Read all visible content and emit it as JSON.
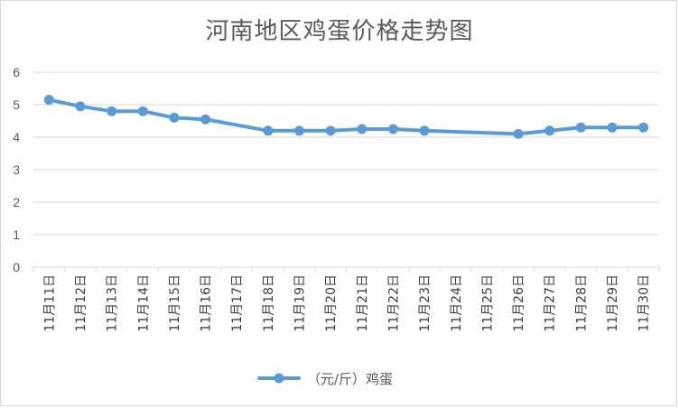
{
  "chart_data": {
    "type": "line",
    "title": "河南地区鸡蛋价格走势图",
    "xlabel": "",
    "ylabel": "",
    "ylim": [
      0,
      6
    ],
    "yticks": [
      "0",
      "1",
      "2",
      "3",
      "4",
      "5",
      "6"
    ],
    "grid": true,
    "legend": "bottom",
    "categories": [
      "11月11日",
      "11月12日",
      "11月13日",
      "11月14日",
      "11月15日",
      "11月16日",
      "11月17日",
      "11月18日",
      "11月19日",
      "11月20日",
      "11月21日",
      "11月22日",
      "11月23日",
      "11月24日",
      "11月25日",
      "11月26日",
      "11月27日",
      "11月28日",
      "11月29日",
      "11月30日"
    ],
    "series": [
      {
        "name": "（元/斤）鸡蛋",
        "color": "#5b9bd5",
        "values": [
          5.15,
          4.95,
          4.8,
          4.8,
          4.6,
          4.55,
          null,
          4.2,
          4.2,
          4.2,
          4.25,
          4.25,
          4.2,
          null,
          null,
          4.1,
          4.2,
          4.3,
          4.3,
          4.3
        ]
      }
    ]
  }
}
